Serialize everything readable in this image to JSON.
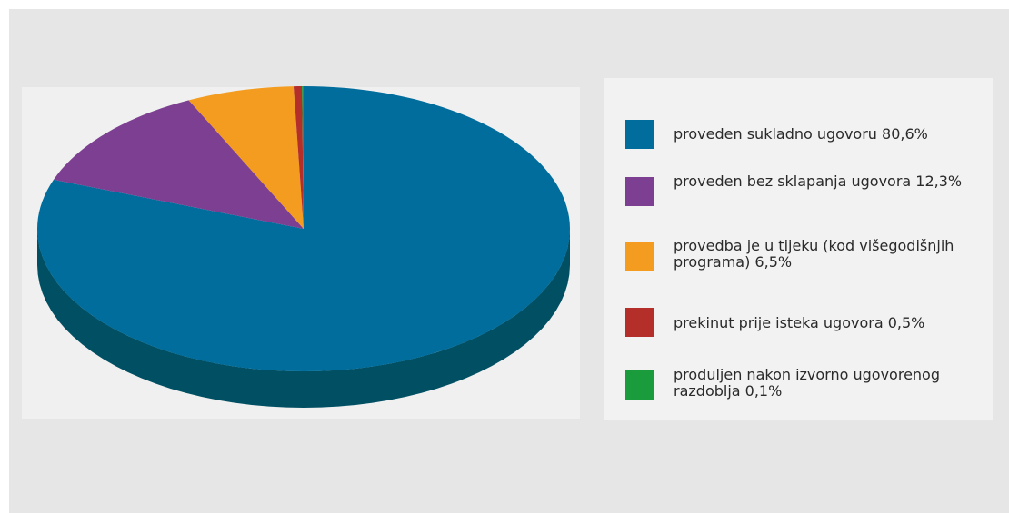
{
  "chart_data": {
    "type": "pie",
    "style": "3d",
    "categories": [
      "proveden sukladno ugovoru 80,6%",
      "proveden bez sklapanja ugovora 12,3%",
      "provedba je u tijeku (kod višegodišnjih programa) 6,5%",
      "prekinut prije isteka ugovora 0,5%",
      "produljen nakon izvorno ugovorenog razdoblja 0,1%"
    ],
    "values": [
      80.6,
      12.3,
      6.5,
      0.5,
      0.1
    ],
    "colors": [
      "#006d9c",
      "#7c3f91",
      "#f39c1f",
      "#b42f2a",
      "#1a9c3c"
    ],
    "side_colors": [
      "#004f63",
      "#5a2d6a",
      "#b8741a",
      "#842220",
      "#136e2b"
    ],
    "legend_position": "right"
  }
}
